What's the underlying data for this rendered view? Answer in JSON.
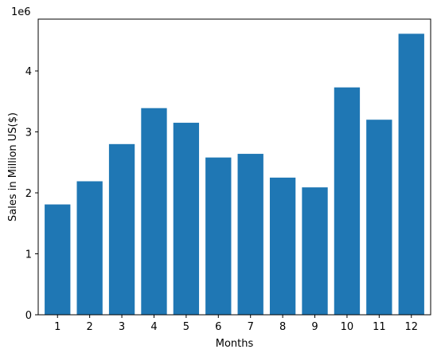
{
  "chart_data": {
    "type": "bar",
    "title": "",
    "xlabel": "Months",
    "ylabel": "Sales in Million US($)",
    "y_offset_label": "1e6",
    "categories": [
      "1",
      "2",
      "3",
      "4",
      "5",
      "6",
      "7",
      "8",
      "9",
      "10",
      "11",
      "12"
    ],
    "values": [
      1810000,
      2190000,
      2800000,
      3390000,
      3150000,
      2580000,
      2640000,
      2250000,
      2090000,
      3730000,
      3200000,
      4610000
    ],
    "ylim": [
      0,
      4850000
    ],
    "yticks": [
      0,
      1000000,
      2000000,
      3000000,
      4000000
    ],
    "ytick_labels": [
      "0",
      "1",
      "2",
      "3",
      "4"
    ],
    "bar_color": "#1f77b4",
    "grid": false,
    "legend": "none"
  }
}
